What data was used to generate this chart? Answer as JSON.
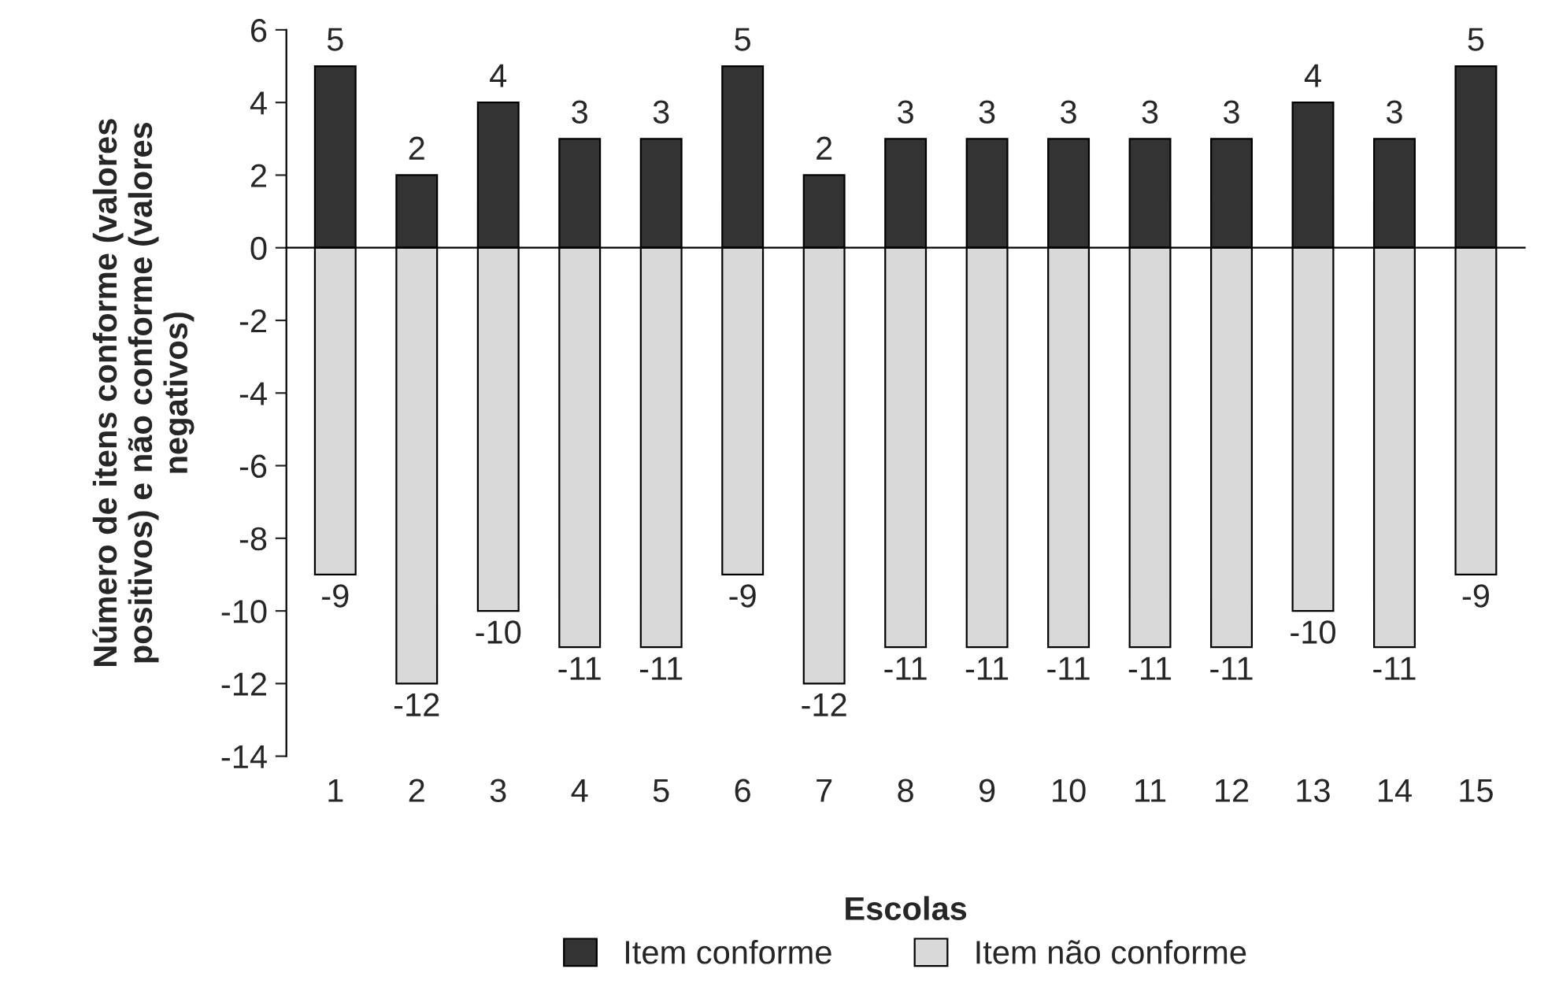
{
  "chart_data": {
    "type": "bar",
    "stacked": true,
    "xlabel": "Escolas",
    "ylabel": "Número de itens conforme (valores\npositivos) e não conforme (valores\nnegativos)",
    "categories": [
      "1",
      "2",
      "3",
      "4",
      "5",
      "6",
      "7",
      "8",
      "9",
      "10",
      "11",
      "12",
      "13",
      "14",
      "15"
    ],
    "series": [
      {
        "name": "Item conforme",
        "color": "#333333",
        "values": [
          5,
          2,
          4,
          3,
          3,
          5,
          2,
          3,
          3,
          3,
          3,
          3,
          4,
          3,
          5
        ]
      },
      {
        "name": "Item não conforme",
        "color": "#d9d9d9",
        "values": [
          -9,
          -12,
          -10,
          -11,
          -11,
          -9,
          -12,
          -11,
          -11,
          -11,
          -11,
          -11,
          -10,
          -11,
          -9
        ]
      }
    ],
    "ylim": [
      -14,
      6
    ],
    "yticks": [
      -14,
      -12,
      -10,
      -8,
      -6,
      -4,
      -2,
      0,
      2,
      4,
      6
    ],
    "data_labels": true,
    "legend": "bottom"
  }
}
